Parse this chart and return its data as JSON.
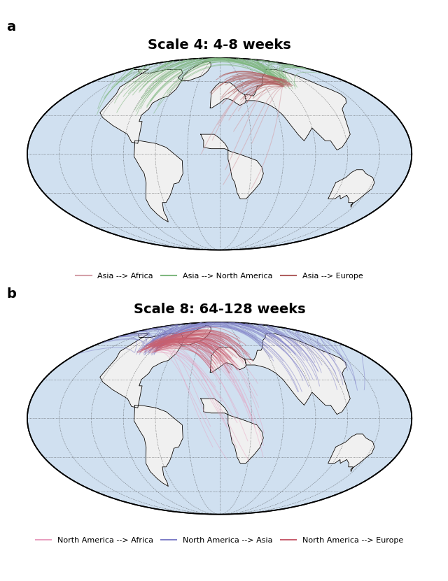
{
  "panel_a_title": "Scale 4: 4-8 weeks",
  "panel_b_title": "Scale 8: 64-128 weeks",
  "panel_a_label": "a",
  "panel_b_label": "b",
  "color_asia_africa": "#d4a0a8",
  "color_asia_na": "#80b880",
  "color_asia_europe": "#b06060",
  "color_na_africa": "#e8a0c0",
  "color_na_asia": "#8080c8",
  "color_na_europe": "#c86070",
  "ocean_color": "#d0e0f0",
  "land_color": "#f0f0f0",
  "border_color": "#000000",
  "grid_color": "#333333",
  "fig_bg": "#ffffff",
  "title_fontsize": 14,
  "label_fontsize": 14
}
